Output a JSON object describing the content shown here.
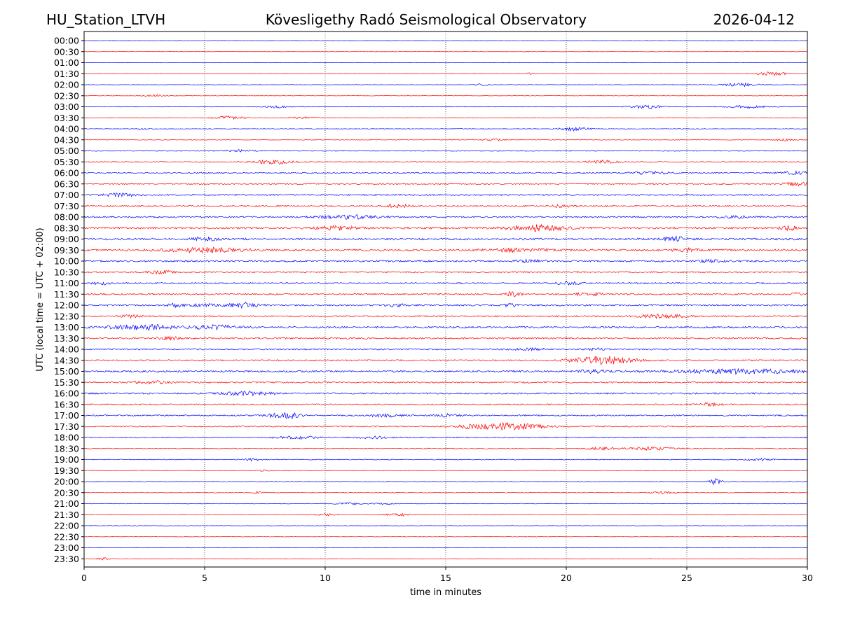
{
  "chart_data": {
    "type": "line",
    "title_left": "HU_Station_LTVH",
    "title": "Kövesligethy Radó Seismological Observatory",
    "title_right": "2026-04-12",
    "xlabel": "time in minutes",
    "ylabel": "UTC (local time = UTC + 02:00)",
    "xlim": [
      0,
      30
    ],
    "x_ticks": [
      0,
      5,
      10,
      15,
      20,
      25,
      30
    ],
    "x_grid": [
      5,
      10,
      15,
      20,
      25
    ],
    "grid_style": "dotted-vertical",
    "trace_colors": [
      "#0000ff",
      "#ff0000"
    ],
    "rows": [
      {
        "label": "00:00",
        "noise": 0.25,
        "events": []
      },
      {
        "label": "00:30",
        "noise": 0.25,
        "events": []
      },
      {
        "label": "01:00",
        "noise": 0.25,
        "events": []
      },
      {
        "label": "01:30",
        "noise": 0.3,
        "events": [
          {
            "t": 28.5,
            "amp": 3,
            "dur": 0.6
          },
          {
            "t": 18.5,
            "amp": 1.2,
            "dur": 0.2
          }
        ]
      },
      {
        "label": "02:00",
        "noise": 0.3,
        "events": [
          {
            "t": 27.2,
            "amp": 2.5,
            "dur": 0.8
          },
          {
            "t": 16.5,
            "amp": 1.5,
            "dur": 0.3
          }
        ]
      },
      {
        "label": "02:30",
        "noise": 0.3,
        "events": [
          {
            "t": 3,
            "amp": 1.5,
            "dur": 0.6
          }
        ]
      },
      {
        "label": "03:00",
        "noise": 0.35,
        "events": [
          {
            "t": 23.3,
            "amp": 2.5,
            "dur": 0.7
          },
          {
            "t": 27.5,
            "amp": 2,
            "dur": 0.8
          },
          {
            "t": 8,
            "amp": 1.5,
            "dur": 0.5
          }
        ]
      },
      {
        "label": "03:30",
        "noise": 0.35,
        "events": [
          {
            "t": 6,
            "amp": 2.5,
            "dur": 0.6
          },
          {
            "t": 9,
            "amp": 1.5,
            "dur": 0.5
          }
        ]
      },
      {
        "label": "04:00",
        "noise": 0.35,
        "events": [
          {
            "t": 20.3,
            "amp": 3,
            "dur": 0.6
          },
          {
            "t": 2.4,
            "amp": 1.5,
            "dur": 0.2
          }
        ]
      },
      {
        "label": "04:30",
        "noise": 0.45,
        "events": [
          {
            "t": 17,
            "amp": 1.5,
            "dur": 0.4
          },
          {
            "t": 29,
            "amp": 1.5,
            "dur": 0.4
          }
        ]
      },
      {
        "label": "05:00",
        "noise": 0.6,
        "events": [
          {
            "t": 6.5,
            "amp": 1.5,
            "dur": 0.5
          }
        ]
      },
      {
        "label": "05:30",
        "noise": 0.7,
        "events": [
          {
            "t": 7.8,
            "amp": 3,
            "dur": 0.8
          },
          {
            "t": 21.5,
            "amp": 2,
            "dur": 0.6
          }
        ]
      },
      {
        "label": "06:00",
        "noise": 0.8,
        "events": [
          {
            "t": 23.5,
            "amp": 2,
            "dur": 0.8
          },
          {
            "t": 29.5,
            "amp": 2,
            "dur": 0.6
          }
        ]
      },
      {
        "label": "06:30",
        "noise": 0.9,
        "events": [
          {
            "t": 29.5,
            "amp": 2.5,
            "dur": 0.6
          }
        ]
      },
      {
        "label": "07:00",
        "noise": 1.0,
        "events": [
          {
            "t": 1.5,
            "amp": 2.5,
            "dur": 0.6
          }
        ]
      },
      {
        "label": "07:30",
        "noise": 1.0,
        "events": [
          {
            "t": 13,
            "amp": 2.5,
            "dur": 0.5
          },
          {
            "t": 19.8,
            "amp": 2,
            "dur": 0.4
          }
        ]
      },
      {
        "label": "08:00",
        "noise": 1.1,
        "events": [
          {
            "t": 11,
            "amp": 2.5,
            "dur": 1.2
          },
          {
            "t": 27,
            "amp": 1.5,
            "dur": 0.6
          }
        ]
      },
      {
        "label": "08:30",
        "noise": 1.3,
        "events": [
          {
            "t": 18.8,
            "amp": 4,
            "dur": 1.2
          },
          {
            "t": 10.5,
            "amp": 2.5,
            "dur": 0.8
          },
          {
            "t": 29.2,
            "amp": 2.5,
            "dur": 0.4
          }
        ]
      },
      {
        "label": "09:00",
        "noise": 1.4,
        "events": [
          {
            "t": 24.5,
            "amp": 3,
            "dur": 0.5
          },
          {
            "t": 5,
            "amp": 2,
            "dur": 0.5
          }
        ]
      },
      {
        "label": "09:30",
        "noise": 1.4,
        "events": [
          {
            "t": 5,
            "amp": 3,
            "dur": 1.5
          },
          {
            "t": 18,
            "amp": 2.5,
            "dur": 1
          },
          {
            "t": 25,
            "amp": 2,
            "dur": 0.5
          }
        ]
      },
      {
        "label": "10:00",
        "noise": 1.2,
        "events": [
          {
            "t": 18.5,
            "amp": 2,
            "dur": 0.6
          },
          {
            "t": 26,
            "amp": 1.5,
            "dur": 0.6
          }
        ]
      },
      {
        "label": "10:30",
        "noise": 1.0,
        "events": [
          {
            "t": 3.2,
            "amp": 2.5,
            "dur": 0.4
          }
        ]
      },
      {
        "label": "11:00",
        "noise": 1.0,
        "events": [
          {
            "t": 20,
            "amp": 2.5,
            "dur": 0.5
          },
          {
            "t": 0.7,
            "amp": 2,
            "dur": 0.4
          }
        ]
      },
      {
        "label": "11:30",
        "noise": 1.0,
        "events": [
          {
            "t": 17.8,
            "amp": 4,
            "dur": 0.3
          },
          {
            "t": 21,
            "amp": 2,
            "dur": 0.6
          },
          {
            "t": 29.5,
            "amp": 2,
            "dur": 0.3
          }
        ]
      },
      {
        "label": "12:00",
        "noise": 1.1,
        "events": [
          {
            "t": 6.6,
            "amp": 4,
            "dur": 0.6
          },
          {
            "t": 3.8,
            "amp": 2.5,
            "dur": 0.3
          },
          {
            "t": 5,
            "amp": 2,
            "dur": 0.5
          },
          {
            "t": 13,
            "amp": 2,
            "dur": 0.4
          },
          {
            "t": 17.7,
            "amp": 2,
            "dur": 0.3
          }
        ]
      },
      {
        "label": "12:30",
        "noise": 1.0,
        "events": [
          {
            "t": 24,
            "amp": 2.5,
            "dur": 1
          },
          {
            "t": 2,
            "amp": 1.5,
            "dur": 0.5
          }
        ]
      },
      {
        "label": "13:00",
        "noise": 1.3,
        "events": [
          {
            "t": 2.5,
            "amp": 3,
            "dur": 1.5
          },
          {
            "t": 5.5,
            "amp": 2.5,
            "dur": 1
          }
        ]
      },
      {
        "label": "13:30",
        "noise": 1.1,
        "events": [
          {
            "t": 3.6,
            "amp": 2,
            "dur": 0.5
          }
        ]
      },
      {
        "label": "14:00",
        "noise": 1.0,
        "events": [
          {
            "t": 21.2,
            "amp": 2,
            "dur": 0.3
          },
          {
            "t": 18.5,
            "amp": 1.5,
            "dur": 0.6
          }
        ]
      },
      {
        "label": "14:30",
        "noise": 1.0,
        "events": [
          {
            "t": 21.2,
            "amp": 5,
            "dur": 1.0
          },
          {
            "t": 22.2,
            "amp": 2.5,
            "dur": 1.0
          }
        ]
      },
      {
        "label": "15:00",
        "noise": 1.2,
        "events": [
          {
            "t": 27,
            "amp": 3,
            "dur": 2.5
          },
          {
            "t": 21.2,
            "amp": 2.5,
            "dur": 0.6
          }
        ]
      },
      {
        "label": "15:30",
        "noise": 1.0,
        "events": [
          {
            "t": 2.8,
            "amp": 2,
            "dur": 0.8
          }
        ]
      },
      {
        "label": "16:00",
        "noise": 1.1,
        "events": [
          {
            "t": 6.8,
            "amp": 2.5,
            "dur": 1
          }
        ]
      },
      {
        "label": "16:30",
        "noise": 0.9,
        "events": [
          {
            "t": 26,
            "amp": 2,
            "dur": 0.5
          }
        ]
      },
      {
        "label": "17:00",
        "noise": 0.9,
        "events": [
          {
            "t": 8.4,
            "amp": 4.5,
            "dur": 0.7
          },
          {
            "t": 12.5,
            "amp": 2,
            "dur": 0.7
          },
          {
            "t": 15,
            "amp": 2,
            "dur": 0.6
          }
        ]
      },
      {
        "label": "17:30",
        "noise": 0.8,
        "events": [
          {
            "t": 17.6,
            "amp": 5,
            "dur": 1.3
          },
          {
            "t": 16,
            "amp": 2,
            "dur": 0.5
          }
        ]
      },
      {
        "label": "18:00",
        "noise": 0.8,
        "events": [
          {
            "t": 8.8,
            "amp": 2,
            "dur": 0.8
          },
          {
            "t": 12,
            "amp": 1.5,
            "dur": 0.6
          }
        ]
      },
      {
        "label": "18:30",
        "noise": 0.6,
        "events": [
          {
            "t": 23.5,
            "amp": 2,
            "dur": 1
          },
          {
            "t": 21.5,
            "amp": 1.5,
            "dur": 0.6
          }
        ]
      },
      {
        "label": "19:00",
        "noise": 0.55,
        "events": [
          {
            "t": 7,
            "amp": 1.5,
            "dur": 0.4
          },
          {
            "t": 28,
            "amp": 1.5,
            "dur": 0.5
          }
        ]
      },
      {
        "label": "19:30",
        "noise": 0.45,
        "events": [
          {
            "t": 7.5,
            "amp": 1.2,
            "dur": 0.3
          }
        ]
      },
      {
        "label": "20:00",
        "noise": 0.4,
        "events": [
          {
            "t": 26.2,
            "amp": 4.5,
            "dur": 0.25
          }
        ]
      },
      {
        "label": "20:30",
        "noise": 0.4,
        "events": [
          {
            "t": 24,
            "amp": 1.5,
            "dur": 0.5
          },
          {
            "t": 7.2,
            "amp": 1.5,
            "dur": 0.2
          }
        ]
      },
      {
        "label": "21:00",
        "noise": 0.4,
        "events": [
          {
            "t": 12.3,
            "amp": 2,
            "dur": 0.4
          },
          {
            "t": 11,
            "amp": 1.5,
            "dur": 0.5
          }
        ]
      },
      {
        "label": "21:30",
        "noise": 0.4,
        "events": [
          {
            "t": 13,
            "amp": 2.5,
            "dur": 0.5
          },
          {
            "t": 10,
            "amp": 1.5,
            "dur": 0.4
          }
        ]
      },
      {
        "label": "22:00",
        "noise": 0.3,
        "events": []
      },
      {
        "label": "22:30",
        "noise": 0.25,
        "events": []
      },
      {
        "label": "23:00",
        "noise": 0.25,
        "events": []
      },
      {
        "label": "23:30",
        "noise": 0.3,
        "events": [
          {
            "t": 0.8,
            "amp": 1.5,
            "dur": 0.3
          }
        ]
      }
    ]
  }
}
